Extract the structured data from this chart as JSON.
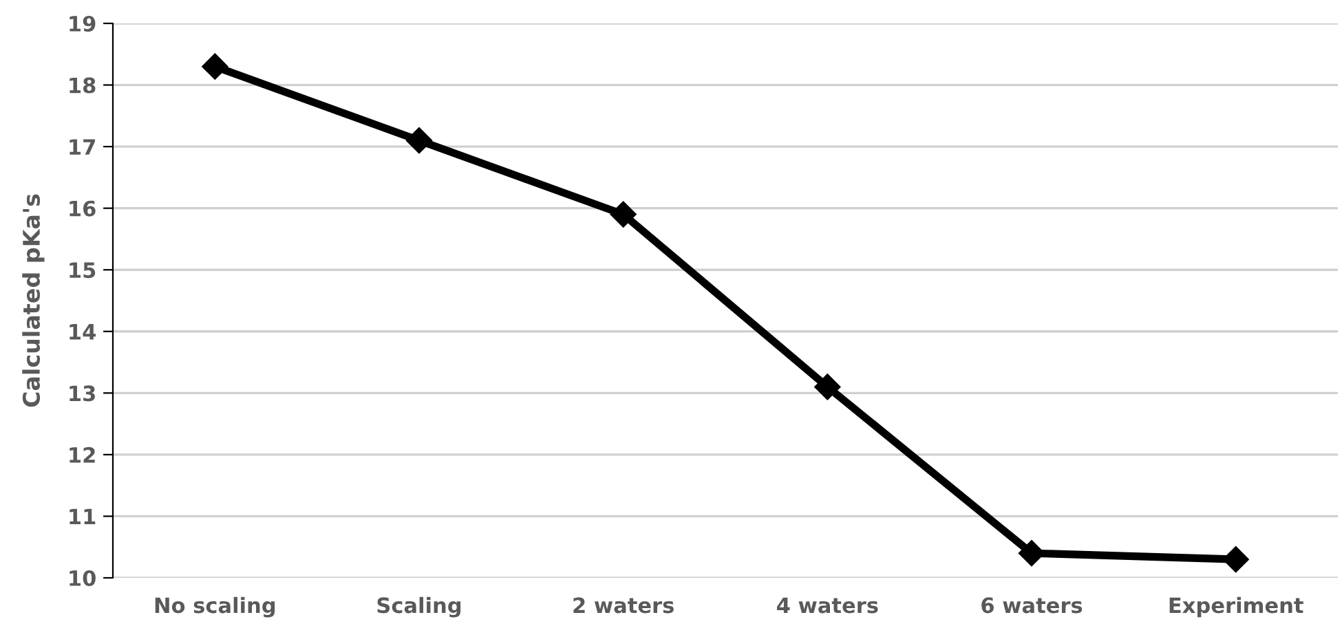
{
  "chart_data": {
    "type": "line",
    "ylabel": "Calculated pKa's",
    "categories": [
      "No scaling",
      "Scaling",
      "2 waters",
      "4 waters",
      "6 waters",
      "Experiment"
    ],
    "series": [
      {
        "color": "#000000",
        "values": [
          18.3,
          17.1,
          15.9,
          13.1,
          10.4,
          10.3
        ]
      }
    ],
    "ylim": [
      10,
      19
    ],
    "yticks": [
      10,
      11,
      12,
      13,
      14,
      15,
      16,
      17,
      18,
      19
    ],
    "grid": "y",
    "marker": "diamond",
    "line_style": "solid"
  }
}
